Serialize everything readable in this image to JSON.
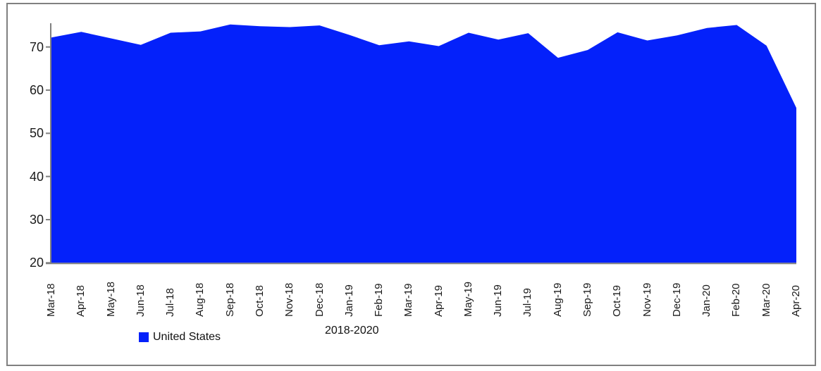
{
  "window": {
    "background": "#ffffff",
    "frame_border_color": "#808080"
  },
  "chart_data": {
    "type": "area",
    "title": "",
    "xlabel": "2018-2020",
    "ylabel": "",
    "categories": [
      "Mar-18",
      "Apr-18",
      "May-18",
      "Jun-18",
      "Jul-18",
      "Aug-18",
      "Sep-18",
      "Oct-18",
      "Nov-18",
      "Dec-18",
      "Jan-19",
      "Feb-19",
      "Mar-19",
      "Apr-19",
      "May-19",
      "Jun-19",
      "Jul-19",
      "Aug-19",
      "Sep-19",
      "Oct-19",
      "Nov-19",
      "Dec-19",
      "Jan-20",
      "Feb-20",
      "Mar-20",
      "Apr-20"
    ],
    "series": [
      {
        "name": "United States",
        "values": [
          72.2,
          73.5,
          72.0,
          70.5,
          73.3,
          73.6,
          75.2,
          74.8,
          74.6,
          75.0,
          72.8,
          70.4,
          71.3,
          70.2,
          73.3,
          71.7,
          73.2,
          67.5,
          69.3,
          73.4,
          71.5,
          72.7,
          74.4,
          75.1,
          70.3,
          55.9
        ]
      }
    ],
    "ylim": [
      20,
      75.5
    ],
    "yticks": [
      20,
      30,
      40,
      50,
      60,
      70
    ],
    "grid": "off",
    "legend_position": "bottom-left",
    "colors": {
      "fill": "#0421fa",
      "axis": "#808080",
      "text": "#1a1a1a"
    }
  }
}
